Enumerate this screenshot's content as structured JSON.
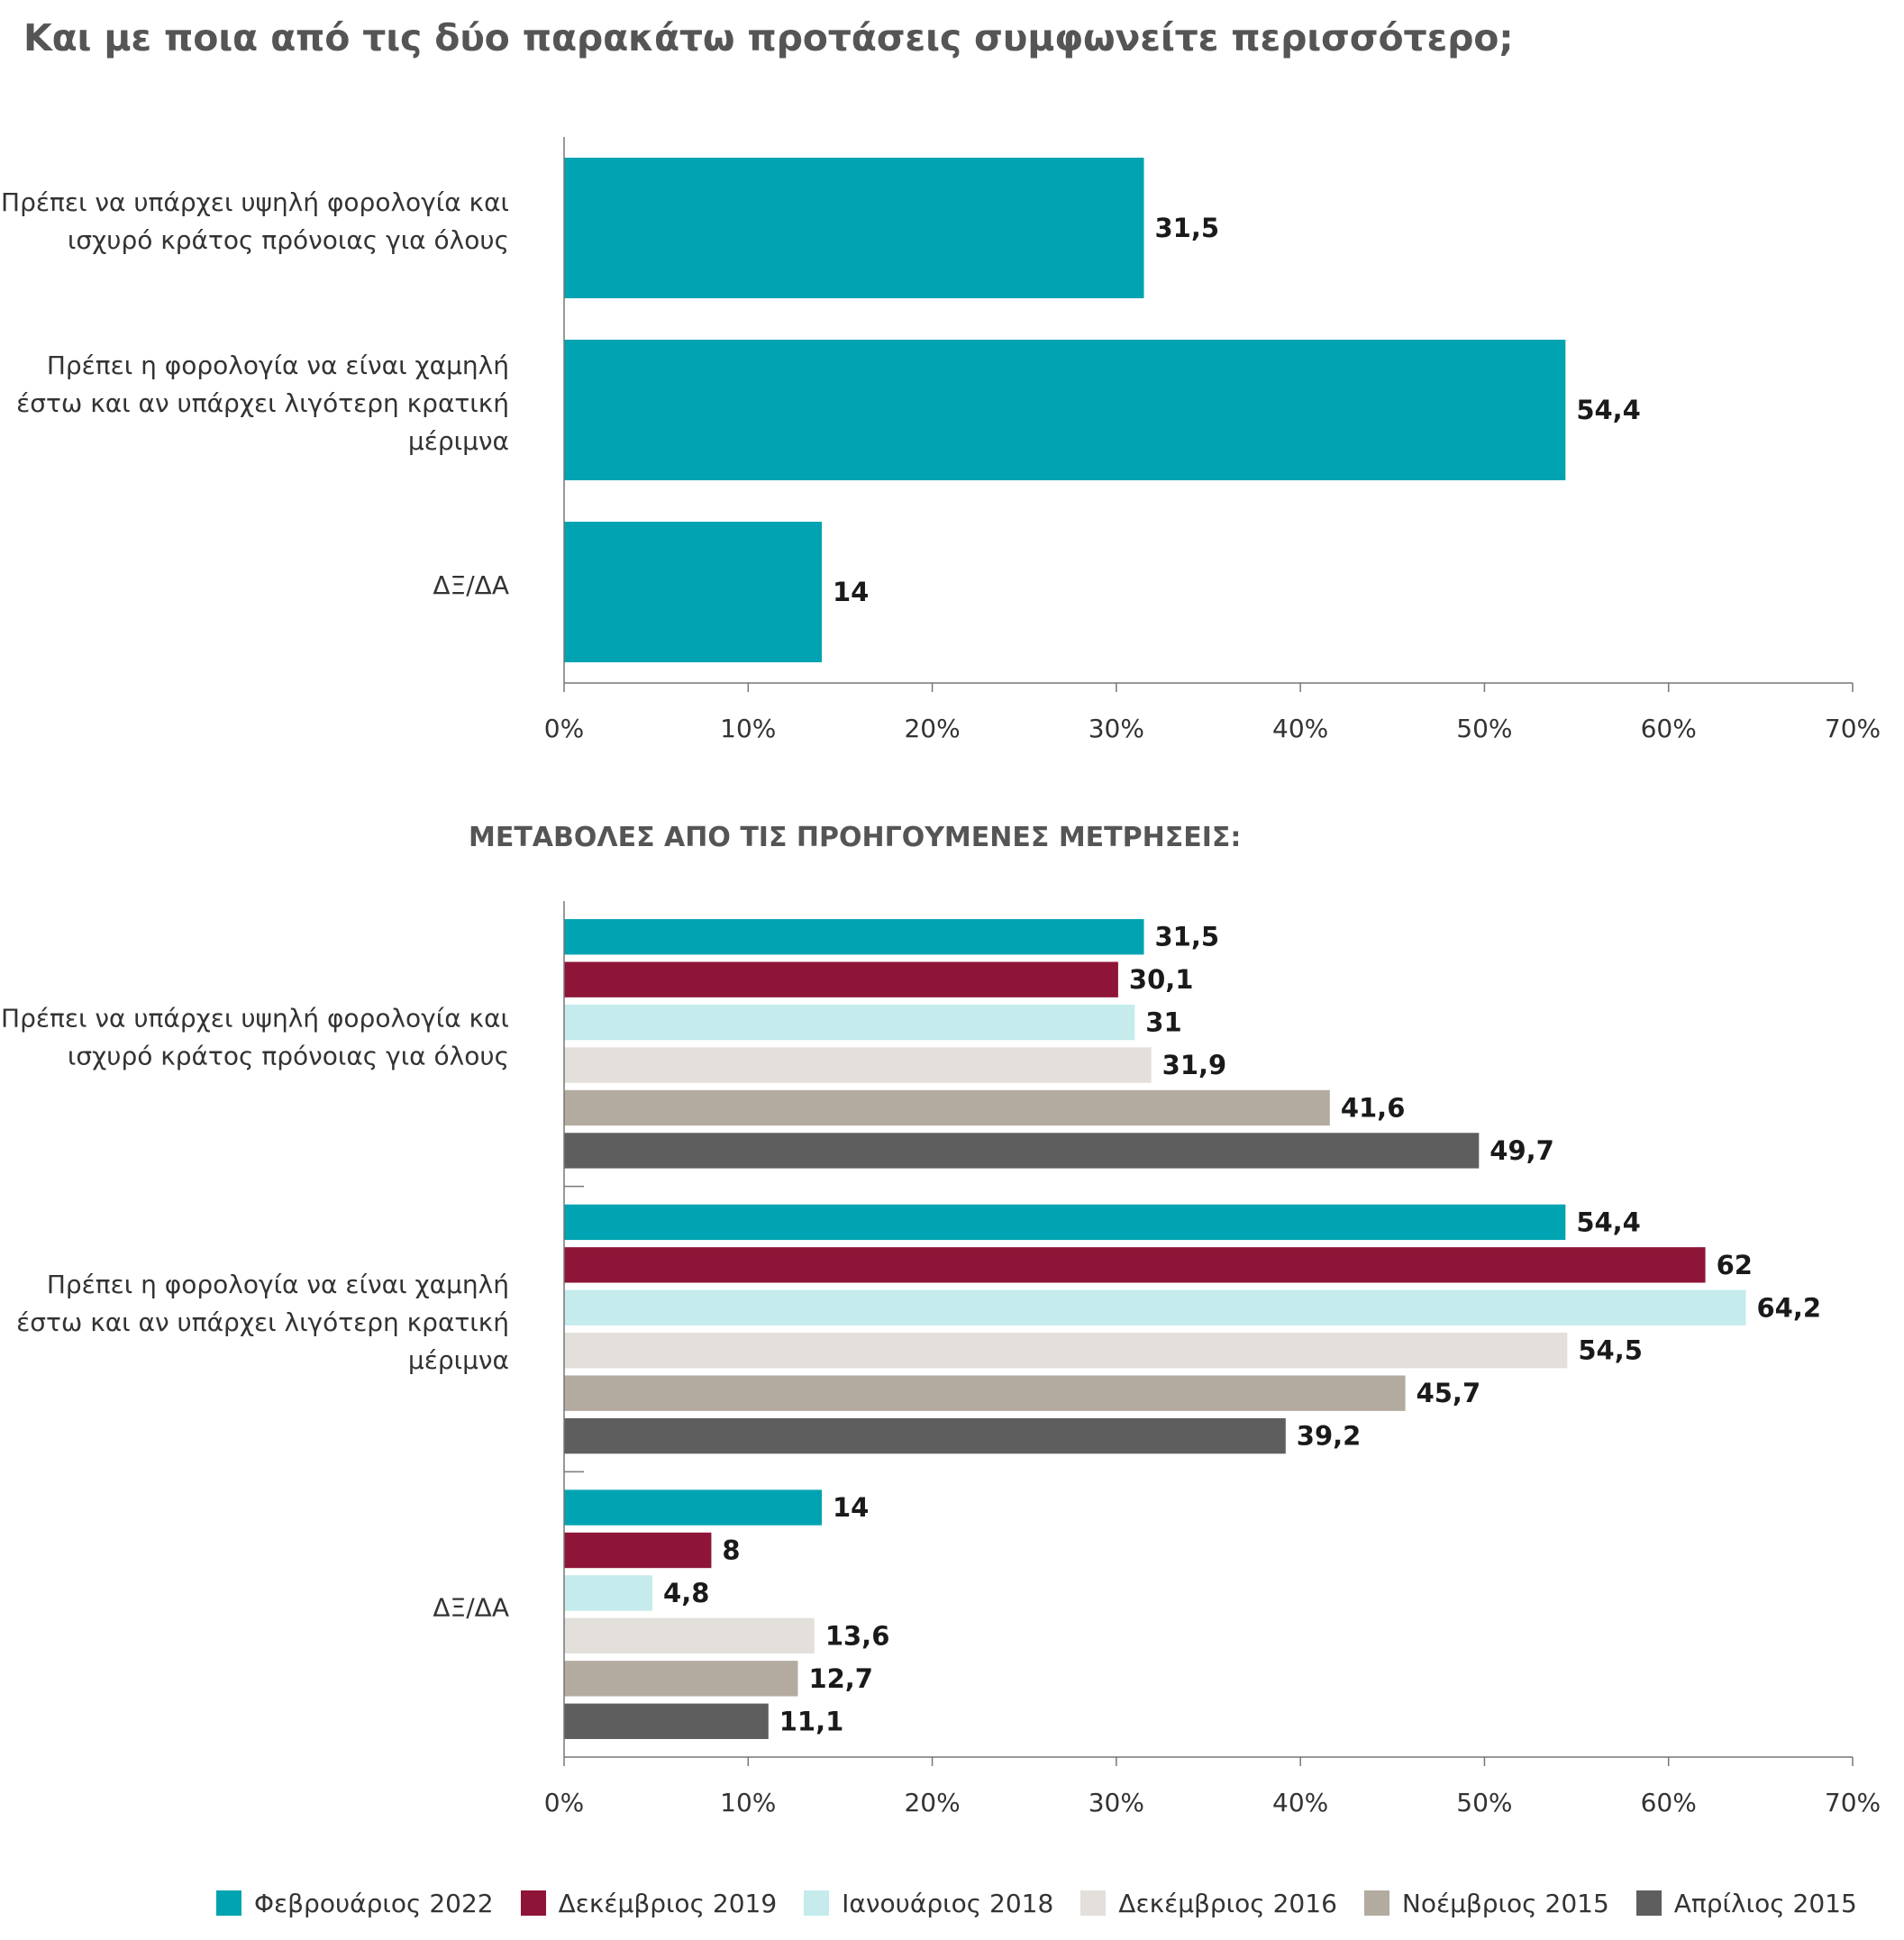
{
  "title": "Και με ποια από τις δύο παρακάτω προτάσεις συμφωνείτε περισσότερο;",
  "subtitle": "ΜΕΤΑΒΟΛΕΣ ΑΠΟ ΤΙΣ ΠΡΟΗΓΟΥΜΕΝΕΣ ΜΕΤΡΗΣΕΙΣ:",
  "chart_data": [
    {
      "type": "bar",
      "orientation": "horizontal",
      "categories": [
        "Πρέπει να υπάρχει υψηλή φορολογία και ισχυρό κράτος πρόνοιας για όλους",
        "Πρέπει η φορολογία να είναι χαμηλή έστω και αν υπάρχει λιγότερη κρατική μέριμνα",
        "ΔΞ/ΔΑ"
      ],
      "category_lines": [
        [
          "Πρέπει να υπάρχει υψηλή φορολογία και",
          "ισχυρό κράτος πρόνοιας για όλους"
        ],
        [
          "Πρέπει η φορολογία να είναι χαμηλή",
          "έστω και αν υπάρχει λιγότερη κρατική",
          "μέριμνα"
        ],
        [
          "ΔΞ/ΔΑ"
        ]
      ],
      "values": [
        31.5,
        54.4,
        14
      ],
      "value_labels": [
        "31,5",
        "54,4",
        "14"
      ],
      "color": "#00A3B1",
      "xlim": [
        0,
        70
      ],
      "xticks": [
        "0%",
        "10%",
        "20%",
        "30%",
        "40%",
        "50%",
        "60%",
        "70%"
      ],
      "grid": false
    },
    {
      "type": "bar",
      "orientation": "horizontal",
      "categories": [
        "Πρέπει να υπάρχει υψηλή φορολογία και ισχυρό κράτος πρόνοιας για όλους",
        "Πρέπει η φορολογία να είναι χαμηλή έστω και αν υπάρχει λιγότερη κρατική μέριμνα",
        "ΔΞ/ΔΑ"
      ],
      "category_lines": [
        [
          "Πρέπει να υπάρχει υψηλή φορολογία και",
          "ισχυρό κράτος πρόνοιας για όλους"
        ],
        [
          "Πρέπει η φορολογία να είναι χαμηλή",
          "έστω και αν υπάρχει λιγότερη κρατική",
          "μέριμνα"
        ],
        [
          "ΔΞ/ΔΑ"
        ]
      ],
      "series": [
        {
          "name": "Φεβρουάριος 2022",
          "color": "#00A3B1",
          "values": [
            31.5,
            54.4,
            14
          ],
          "labels": [
            "31,5",
            "54,4",
            "14"
          ]
        },
        {
          "name": "Δεκέμβριος 2019",
          "color": "#8E1537",
          "values": [
            30.1,
            62,
            8
          ],
          "labels": [
            "30,1",
            "62",
            "8"
          ]
        },
        {
          "name": "Ιανουάριος 2018",
          "color": "#C5EBEC",
          "values": [
            31,
            64.2,
            4.8
          ],
          "labels": [
            "31",
            "64,2",
            "4,8"
          ]
        },
        {
          "name": "Δεκέμβριος 2016",
          "color": "#E3DFDB",
          "values": [
            31.9,
            54.5,
            13.6
          ],
          "labels": [
            "31,9",
            "54,5",
            "13,6"
          ]
        },
        {
          "name": "Νοέμβριος 2015",
          "color": "#B3AAA0",
          "values": [
            41.6,
            45.7,
            12.7
          ],
          "labels": [
            "41,6",
            "45,7",
            "12,7"
          ]
        },
        {
          "name": "Απρίλιος 2015",
          "color": "#5E5E5E",
          "values": [
            49.7,
            39.2,
            11.1
          ],
          "labels": [
            "49,7",
            "39,2",
            "11,1"
          ]
        }
      ],
      "xlim": [
        0,
        70
      ],
      "xticks": [
        "0%",
        "10%",
        "20%",
        "30%",
        "40%",
        "50%",
        "60%",
        "70%"
      ],
      "grid": false,
      "legend": "bottom"
    }
  ]
}
